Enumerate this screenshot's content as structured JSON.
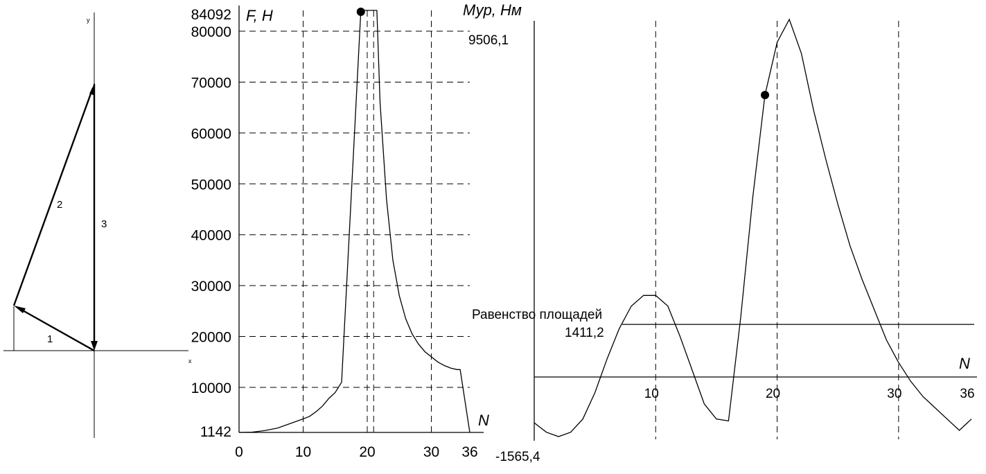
{
  "chart_data": [
    {
      "type": "diagram",
      "axis_x_label": "x",
      "axis_y_label": "y",
      "vectors": [
        {
          "label": "1"
        },
        {
          "label": "2"
        },
        {
          "label": "3"
        }
      ]
    },
    {
      "type": "line",
      "ylabel": "F, H",
      "xlabel": "N",
      "xlim": [
        0,
        36
      ],
      "ylim": [
        1142,
        84092
      ],
      "x_ticks": [
        0,
        10,
        20,
        30,
        36
      ],
      "x_tick_labels": [
        "0",
        "10",
        "20",
        "30",
        "36"
      ],
      "y_ticks": [
        1142,
        10000,
        20000,
        30000,
        40000,
        50000,
        60000,
        70000,
        80000,
        84092
      ],
      "y_tick_labels": [
        "1142",
        "10000",
        "20000",
        "30000",
        "40000",
        "50000",
        "60000",
        "70000",
        "80000",
        "84092"
      ],
      "x_grid": [
        10,
        20,
        21,
        30
      ],
      "y_grid": [
        10000,
        20000,
        30000,
        40000,
        50000,
        60000,
        70000,
        80000
      ],
      "series": [
        {
          "x": [
            0,
            2,
            4,
            6,
            8,
            10,
            11,
            12,
            13,
            14,
            15,
            16,
            19,
            20.5,
            21.5,
            22,
            23,
            24,
            25,
            26,
            27,
            28,
            29,
            30,
            31,
            32,
            33,
            34,
            34.5,
            36
          ],
          "y": [
            1142,
            1200,
            1500,
            2000,
            2900,
            3800,
            4300,
            5200,
            6300,
            7800,
            9000,
            11000,
            84092,
            84092,
            84092,
            66000,
            47000,
            35000,
            28000,
            23500,
            20500,
            18500,
            17000,
            16000,
            15000,
            14300,
            13800,
            13500,
            13500,
            1142
          ]
        }
      ],
      "markers": [
        {
          "x": 19,
          "y": 84092
        }
      ]
    },
    {
      "type": "line",
      "ylabel": "Мур, Нм",
      "xlabel": "N",
      "xlim": [
        0,
        36
      ],
      "ylim": [
        -1565.4,
        9506.1
      ],
      "x_ticks": [
        10,
        20,
        30,
        36
      ],
      "x_tick_labels": [
        "10",
        "20",
        "30",
        "36"
      ],
      "y_tick_labels": [
        "-1565,4",
        "9506,1"
      ],
      "x_grid": [
        10,
        20,
        30
      ],
      "reference_line": {
        "label": "Равенство площадей",
        "value_label": "1411,2",
        "y": 1411.2
      },
      "series": [
        {
          "x": [
            0,
            1,
            2,
            3,
            4,
            5,
            6,
            7,
            8,
            9,
            10,
            11,
            12,
            13,
            14,
            15,
            16,
            17,
            18,
            19,
            20,
            21,
            22,
            23,
            24,
            25,
            26,
            27,
            28,
            29,
            30,
            31,
            32,
            33,
            34,
            35,
            36
          ],
          "y": [
            -1200,
            -1450,
            -1565.4,
            -1450,
            -1100,
            -400,
            500,
            1300,
            1900,
            2180,
            2180,
            1900,
            1100,
            200,
            -700,
            -1100,
            -1150,
            1600,
            4800,
            7500,
            8900,
            9506.1,
            8600,
            7100,
            5800,
            4600,
            3500,
            2600,
            1800,
            1000,
            400,
            -100,
            -500,
            -800,
            -1100,
            -1400,
            -1100
          ]
        }
      ],
      "markers": [
        {
          "x": 19,
          "y": 7500
        }
      ]
    }
  ]
}
